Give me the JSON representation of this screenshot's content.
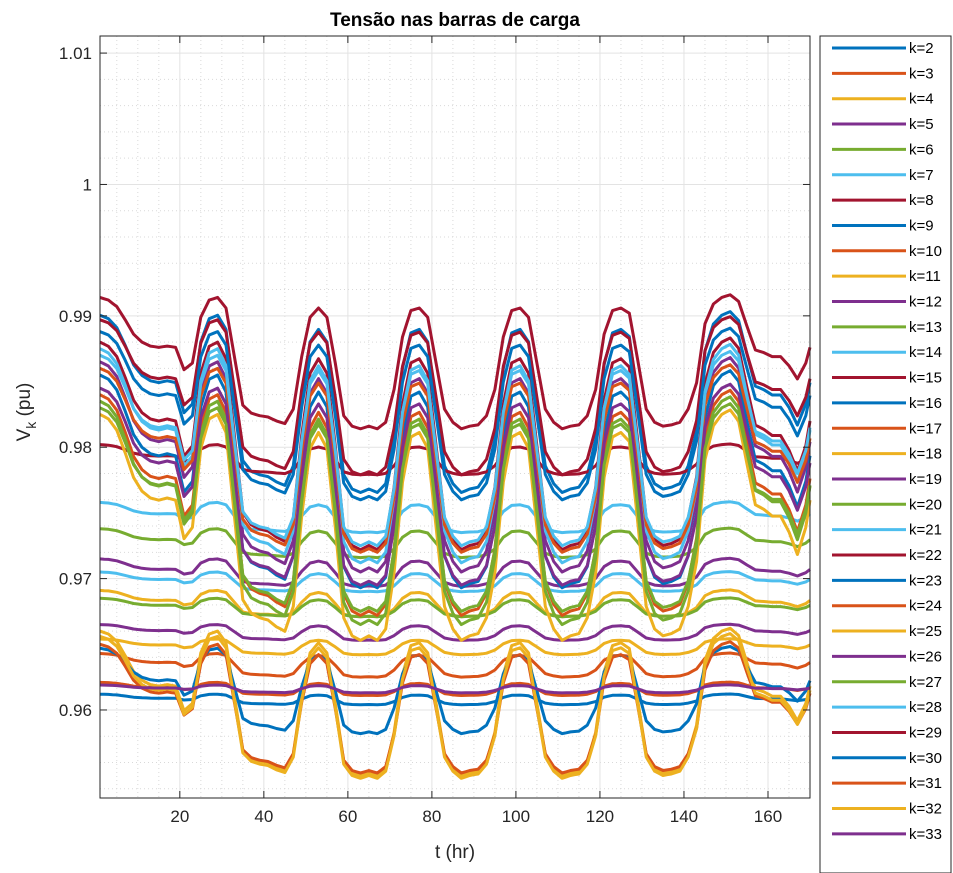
{
  "chart_data": {
    "type": "line",
    "title": "Tensão nas barras de carga",
    "xlabel": "t (hr)",
    "ylabel_main": "V",
    "ylabel_sub": "k",
    "ylabel_unit": " (pu)",
    "xlim": [
      1,
      170
    ],
    "ylim": [
      0.9533,
      1.0113
    ],
    "xticks": [
      20,
      40,
      60,
      80,
      100,
      120,
      140,
      160
    ],
    "yticks": [
      0.96,
      0.97,
      0.98,
      0.99,
      1.0
    ],
    "ytick_labels": [
      "0.96",
      "0.97",
      "0.98",
      "0.99",
      "1"
    ],
    "extra_ytick": {
      "value": 1.01,
      "label": "1.01"
    },
    "grid": true,
    "minor_grid": true,
    "legend_position": "outside-right",
    "colors": [
      "#0072BD",
      "#D95319",
      "#EDB120",
      "#7E2F8E",
      "#77AC30",
      "#4DBEEE",
      "#A2142F"
    ],
    "series": [
      {
        "name": "k=2",
        "base": 0.99005,
        "depth": 0.0135
      },
      {
        "name": "k=3",
        "base": 0.9643,
        "depth": 0.0018
      },
      {
        "name": "k=4",
        "base": 0.9691,
        "depth": 0.002
      },
      {
        "name": "k=5",
        "base": 0.9715,
        "depth": 0.0021
      },
      {
        "name": "k=6",
        "base": 0.9738,
        "depth": 0.0022
      },
      {
        "name": "k=7",
        "base": 0.9758,
        "depth": 0.0023
      },
      {
        "name": "k=8",
        "base": 0.9802,
        "depth": 0.0023
      },
      {
        "name": "k=9",
        "base": 0.9612,
        "depth": 0.0008
      },
      {
        "name": "k=10",
        "base": 0.9621,
        "depth": 0.001
      },
      {
        "name": "k=11",
        "base": 0.9654,
        "depth": 0.0012
      },
      {
        "name": "k=12",
        "base": 0.9665,
        "depth": 0.0012
      },
      {
        "name": "k=13",
        "base": 0.9685,
        "depth": 0.0014
      },
      {
        "name": "k=14",
        "base": 0.9705,
        "depth": 0.0015
      },
      {
        "name": "k=15",
        "base": 0.988,
        "depth": 0.0158
      },
      {
        "name": "k=16",
        "base": 0.9855,
        "depth": 0.0162
      },
      {
        "name": "k=17",
        "base": 0.984,
        "depth": 0.0168
      },
      {
        "name": "k=18",
        "base": 0.9825,
        "depth": 0.0172
      },
      {
        "name": "k=19",
        "base": 0.9865,
        "depth": 0.016
      },
      {
        "name": "k=20",
        "base": 0.9835,
        "depth": 0.017
      },
      {
        "name": "k=21",
        "base": 0.9875,
        "depth": 0.0163
      },
      {
        "name": "k=22",
        "base": 0.9897,
        "depth": 0.0118
      },
      {
        "name": "k=23",
        "base": 0.9888,
        "depth": 0.0128
      },
      {
        "name": "k=24",
        "base": 0.986,
        "depth": 0.014
      },
      {
        "name": "k=25",
        "base": 0.966,
        "depth": 0.011
      },
      {
        "name": "k=26",
        "base": 0.9845,
        "depth": 0.015
      },
      {
        "name": "k=27",
        "base": 0.983,
        "depth": 0.0155
      },
      {
        "name": "k=28",
        "base": 0.987,
        "depth": 0.0145
      },
      {
        "name": "k=29",
        "base": 0.9914,
        "depth": 0.01
      },
      {
        "name": "k=30",
        "base": 0.9647,
        "depth": 0.0065
      },
      {
        "name": "k=31",
        "base": 0.965,
        "depth": 0.0098
      },
      {
        "name": "k=32",
        "base": 0.9656,
        "depth": 0.0108
      },
      {
        "name": "k=33",
        "base": 0.9619,
        "depth": 0.0006
      }
    ],
    "daily_pattern": {
      "period_hr": 24,
      "peak_hours": [
        4,
        5,
        28,
        52,
        76,
        100,
        125,
        152
      ],
      "valley_hours": [
        21,
        37,
        61,
        86,
        110,
        134,
        167
      ]
    }
  }
}
